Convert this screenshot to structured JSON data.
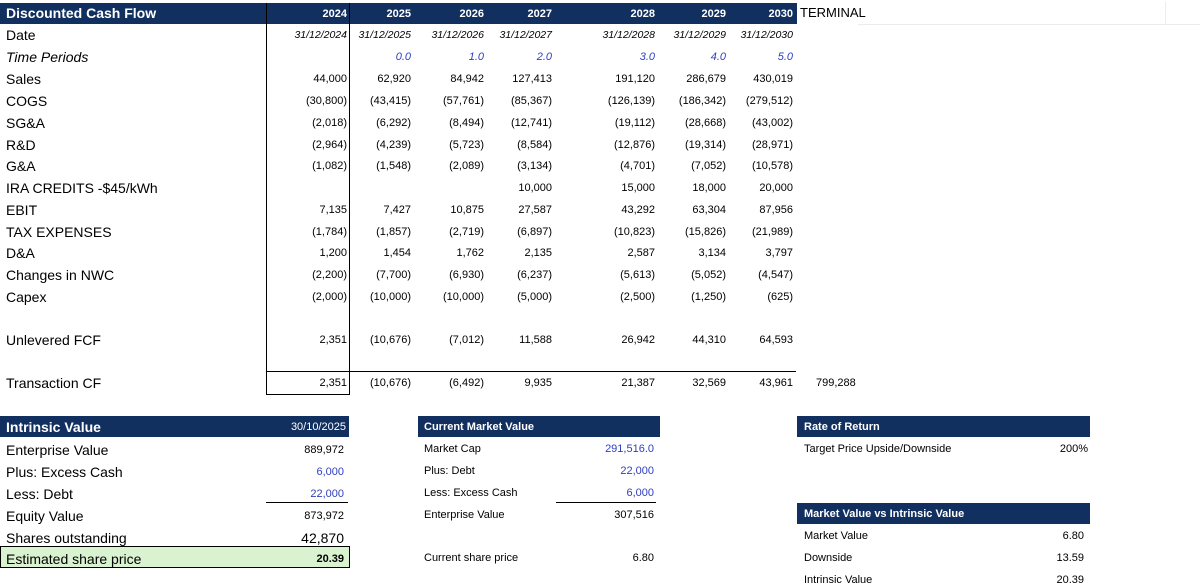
{
  "dcf": {
    "title": "Discounted Cash Flow",
    "years": [
      "2024",
      "2025",
      "2026",
      "2027",
      "2028",
      "2029",
      "2030"
    ],
    "terminal_label": "TERMINAL",
    "rows": [
      {
        "label": "Date",
        "italic": false,
        "values": [
          "31/12/2024",
          "31/12/2025",
          "31/12/2026",
          "31/12/2027",
          "31/12/2028",
          "31/12/2029",
          "31/12/2030"
        ]
      },
      {
        "label": "Time Periods",
        "italic": true,
        "values": [
          "",
          "0.0",
          "1.0",
          "2.0",
          "3.0",
          "4.0",
          "5.0"
        ]
      },
      {
        "label": "Sales",
        "italic": false,
        "values": [
          "44,000",
          "62,920",
          "84,942",
          "127,413",
          "191,120",
          "286,679",
          "430,019"
        ]
      },
      {
        "label": "COGS",
        "italic": false,
        "values": [
          "(30,800)",
          "(43,415)",
          "(57,761)",
          "(85,367)",
          "(126,139)",
          "(186,342)",
          "(279,512)"
        ]
      },
      {
        "label": "SG&A",
        "italic": false,
        "values": [
          "(2,018)",
          "(6,292)",
          "(8,494)",
          "(12,741)",
          "(19,112)",
          "(28,668)",
          "(43,002)"
        ]
      },
      {
        "label": "R&D",
        "italic": false,
        "values": [
          "(2,964)",
          "(4,239)",
          "(5,723)",
          "(8,584)",
          "(12,876)",
          "(19,314)",
          "(28,971)"
        ]
      },
      {
        "label": "G&A",
        "italic": false,
        "values": [
          "(1,082)",
          "(1,548)",
          "(2,089)",
          "(3,134)",
          "(4,701)",
          "(7,052)",
          "(10,578)"
        ]
      },
      {
        "label": "IRA CREDITS -$45/kWh",
        "italic": false,
        "values": [
          "",
          "",
          "",
          "10,000",
          "15,000",
          "18,000",
          "20,000"
        ]
      },
      {
        "label": "EBIT",
        "italic": false,
        "values": [
          "7,135",
          "7,427",
          "10,875",
          "27,587",
          "43,292",
          "63,304",
          "87,956"
        ]
      },
      {
        "label": "TAX EXPENSES",
        "italic": false,
        "values": [
          "(1,784)",
          "(1,857)",
          "(2,719)",
          "(6,897)",
          "(10,823)",
          "(15,826)",
          "(21,989)"
        ]
      },
      {
        "label": "D&A",
        "italic": false,
        "values": [
          "1,200",
          "1,454",
          "1,762",
          "2,135",
          "2,587",
          "3,134",
          "3,797"
        ]
      },
      {
        "label": "Changes in NWC",
        "italic": false,
        "values": [
          "(2,200)",
          "(7,700)",
          "(6,930)",
          "(6,237)",
          "(5,613)",
          "(5,052)",
          "(4,547)"
        ]
      },
      {
        "label": "Capex",
        "italic": false,
        "values": [
          "(2,000)",
          "(10,000)",
          "(10,000)",
          "(5,000)",
          "(2,500)",
          "(1,250)",
          "(625)"
        ]
      },
      {
        "label": "Unlevered FCF",
        "italic": false,
        "values": [
          "2,351",
          "(10,676)",
          "(7,012)",
          "11,588",
          "26,942",
          "44,310",
          "64,593"
        ]
      },
      {
        "label": "Transaction CF",
        "italic": false,
        "values": [
          "2,351",
          "(10,676)",
          "(6,492)",
          "9,935",
          "21,387",
          "32,569",
          "43,961"
        ],
        "terminal": "799,288"
      }
    ]
  },
  "intrinsic": {
    "title": "Intrinsic Value",
    "date": "30/10/2025",
    "rows": [
      {
        "label": "Enterprise Value",
        "value": "889,972",
        "blue": false
      },
      {
        "label": "Plus: Excess Cash",
        "value": "6,000",
        "blue": true
      },
      {
        "label": "Less: Debt",
        "value": "22,000",
        "blue": true
      },
      {
        "label": "Equity Value",
        "value": "873,972",
        "blue": false
      },
      {
        "label": "Shares outstanding",
        "value": "42,870",
        "blue": false
      },
      {
        "label": "Estimated share price",
        "value": "20.39",
        "blue": false
      }
    ]
  },
  "market": {
    "title": "Current Market Value",
    "rows": [
      {
        "label": "Market Cap",
        "value": "291,516.0",
        "blue": true
      },
      {
        "label": "Plus: Debt",
        "value": "22,000",
        "blue": true
      },
      {
        "label": "Less: Excess Cash",
        "value": "6,000",
        "blue": true
      },
      {
        "label": "Enterprise Value",
        "value": "307,516",
        "blue": false
      },
      {
        "label": "Current share price",
        "value": "6.80",
        "blue": false
      }
    ]
  },
  "ror": {
    "title": "Rate of Return",
    "label": "Target Price Upside/Downside",
    "value": "200%"
  },
  "mvi": {
    "title": "Market Value vs Intrinsic Value",
    "rows": [
      {
        "label": "Market Value",
        "value": "6.80"
      },
      {
        "label": "Downside",
        "value": "13.59"
      },
      {
        "label": "Intrinsic Value",
        "value": "20.39"
      }
    ]
  },
  "colors": {
    "header": "#12305f",
    "input_blue": "#2e3fbf",
    "highlight": "#d9f2d0"
  }
}
